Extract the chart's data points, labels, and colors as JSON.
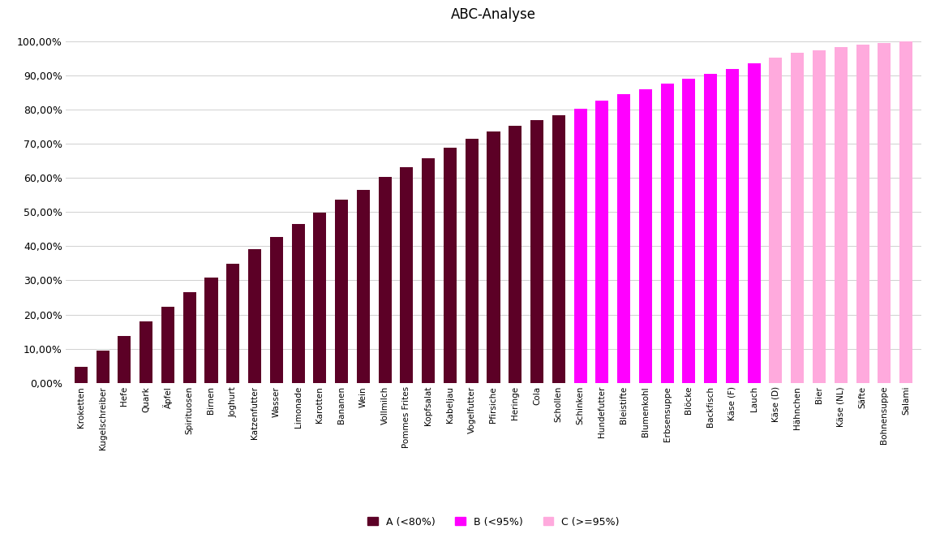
{
  "title": "ABC-Analyse",
  "categories": [
    "Kroketten",
    "Kugelschreiber",
    "Hefe",
    "Quark",
    "Äpfel",
    "Spirituosen",
    "Birnen",
    "Joghurt",
    "Katzenfutter",
    "Wasser",
    "Limonade",
    "Karotten",
    "Bananen",
    "Wein",
    "Vollmilch",
    "Pommes Frites",
    "Kopfsalat",
    "Kabeljau",
    "Vogelfutter",
    "Pfirsiche",
    "Heringe",
    "Cola",
    "Schollen",
    "Schinken",
    "Hundefutter",
    "Bleistifte",
    "Blumenkohl",
    "Erbsensuppe",
    "Blöcke",
    "Backfisch",
    "Käse (F)",
    "Lauch",
    "Käse (D)",
    "Hähnchen",
    "Bier",
    "Käse (NL)",
    "Säfte",
    "Bohnensuppe",
    "Salami"
  ],
  "values": [
    4.8,
    9.5,
    13.8,
    18.0,
    22.2,
    26.5,
    30.8,
    34.8,
    39.2,
    42.8,
    46.5,
    49.8,
    53.5,
    56.5,
    60.2,
    63.2,
    65.8,
    68.8,
    71.5,
    73.5,
    75.2,
    76.8,
    78.2,
    80.2,
    82.5,
    84.5,
    86.0,
    87.5,
    89.0,
    90.5,
    91.8,
    93.5,
    95.2,
    96.5,
    97.2,
    98.2,
    99.0,
    99.5,
    100.0
  ],
  "color_A": "#5C0026",
  "color_B": "#FF00FF",
  "color_C": "#FFAADD",
  "background_color": "#FFFFFF",
  "grid_color": "#D0D0D0",
  "threshold_A": 80.0,
  "threshold_B": 95.0,
  "legend_labels": [
    "A (<80%)",
    "B (<95%)",
    "C (>=95%)"
  ],
  "ytick_labels": [
    "0,00%",
    "10,00%",
    "20,00%",
    "30,00%",
    "40,00%",
    "50,00%",
    "60,00%",
    "70,00%",
    "80,00%",
    "90,00%",
    "100,00%"
  ],
  "ytick_values": [
    0,
    10,
    20,
    30,
    40,
    50,
    60,
    70,
    80,
    90,
    100
  ]
}
